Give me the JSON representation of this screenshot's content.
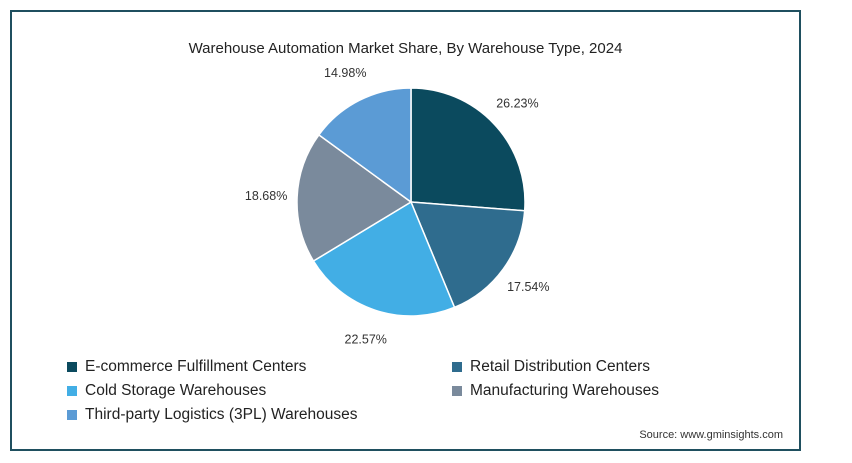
{
  "chart_data": {
    "type": "pie",
    "title": "Warehouse Automation Market Share, By Warehouse Type, 2024",
    "categories": [
      "E-commerce Fulfillment Centers",
      "Retail Distribution Centers",
      "Cold Storage Warehouses",
      "Manufacturing Warehouses",
      "Third-party Logistics (3PL) Warehouses"
    ],
    "values": [
      26.23,
      17.54,
      22.57,
      18.68,
      14.98
    ],
    "labels": [
      "26.23%",
      "17.54%",
      "22.57%",
      "18.68%",
      "14.98%"
    ],
    "colors": [
      "#0b4a5e",
      "#2f6c8e",
      "#42aee5",
      "#7a8a9c",
      "#5b9bd5"
    ],
    "legend_position": "bottom",
    "source": "Source: www.gminsights.com"
  }
}
